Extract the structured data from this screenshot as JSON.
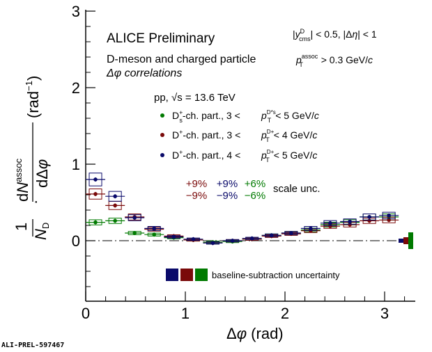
{
  "chart_data": {
    "type": "scatter",
    "title": "ALICE Preliminary",
    "subtitle_lines": [
      "D-meson and charged particle",
      "Δφ correlations"
    ],
    "cuts": {
      "rapidity": "|y^D_cms| < 0.5, |Δη| < 1",
      "pt_assoc": "p_T^assoc > 0.3 GeV/c"
    },
    "system": "pp,  √s = 13.6 TeV",
    "xlabel": "Δφ (rad)",
    "ylabel": "1/N_D · dN^assoc/dΔφ (rad^-1)",
    "xlim": [
      0,
      3.3
    ],
    "ylim": [
      -0.78,
      3.0
    ],
    "xticks": [
      0,
      1,
      2,
      3
    ],
    "yticks": [
      0,
      1,
      2,
      3
    ],
    "grid": false,
    "legend_placement": "top-center",
    "series": [
      {
        "name": "Ds+-ch. part., 3 < pT(Ds+) < 5 GeV/c",
        "legend": {
          "particle": "D",
          "sub": "s",
          "sup": "+",
          "rest": "-ch. part., 3 <",
          "ptsup": "D*s",
          "range": "< 5 GeV/c"
        },
        "color": "#007a00",
        "x": [
          0.098,
          0.295,
          0.491,
          0.687,
          0.884,
          1.08,
          1.276,
          1.473,
          1.669,
          1.865,
          2.062,
          2.258,
          2.454,
          2.651,
          2.847,
          3.043
        ],
        "y": [
          0.24,
          0.26,
          0.1,
          0.08,
          0.04,
          0.01,
          -0.02,
          -0.01,
          0.02,
          0.07,
          0.1,
          0.14,
          0.21,
          0.24,
          0.31,
          0.31
        ]
      },
      {
        "name": "D+-ch. part., 3 < pT(D+) < 4 GeV/c",
        "legend": {
          "particle": "D",
          "sub": "",
          "sup": "+",
          "rest": "-ch. part., 3 <",
          "ptsup": "D+",
          "range": "< 4 GeV/c"
        },
        "color": "#7a0a0a",
        "x": [
          0.098,
          0.295,
          0.491,
          0.687,
          0.884,
          1.08,
          1.276,
          1.473,
          1.669,
          1.865,
          2.062,
          2.258,
          2.454,
          2.651,
          2.847,
          3.043
        ],
        "y": [
          0.61,
          0.46,
          0.31,
          0.15,
          0.06,
          0.01,
          -0.03,
          0.0,
          0.02,
          0.06,
          0.09,
          0.13,
          0.19,
          0.21,
          0.26,
          0.27
        ]
      },
      {
        "name": "D+-ch. part., 4 < pT(D+) < 5 GeV/c",
        "legend": {
          "particle": "D",
          "sub": "",
          "sup": "+",
          "rest": "-ch. part., 4 <",
          "ptsup": "D+",
          "range": "< 5 GeV/c"
        },
        "color": "#0a0a6a",
        "x": [
          0.098,
          0.295,
          0.491,
          0.687,
          0.884,
          1.08,
          1.276,
          1.473,
          1.669,
          1.865,
          2.062,
          2.258,
          2.454,
          2.651,
          2.847,
          3.043
        ],
        "y": [
          0.8,
          0.58,
          0.3,
          0.16,
          0.05,
          0.02,
          -0.03,
          0.0,
          0.03,
          0.07,
          0.1,
          0.16,
          0.23,
          0.25,
          0.31,
          0.33
        ]
      }
    ],
    "scale_unc": {
      "label": "scale unc.",
      "upper": [
        "+9%",
        "+9%",
        "+6%"
      ],
      "lower": [
        "−9%",
        "−9%",
        "−6%"
      ],
      "colors": [
        "#7a0a0a",
        "#0a0a6a",
        "#007a00"
      ]
    },
    "baseline": {
      "label": "baseline-subtraction uncertainty",
      "colors": [
        "#0a0a6a",
        "#7a0a0a",
        "#007a00"
      ]
    }
  },
  "footer": {
    "tag": "ALI-PREL-597467"
  }
}
